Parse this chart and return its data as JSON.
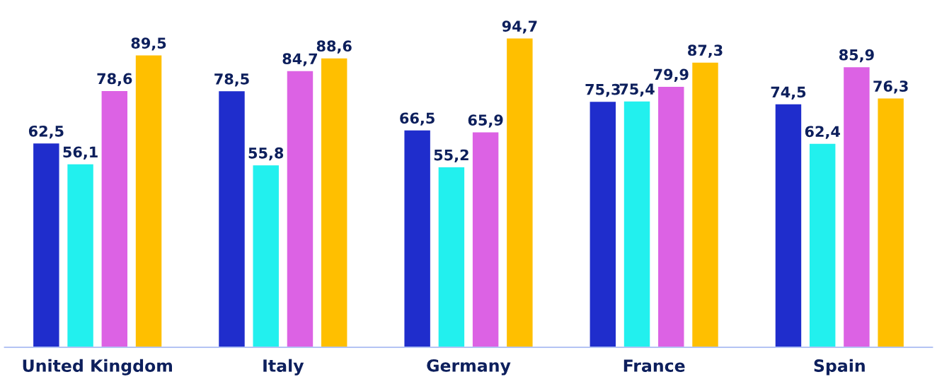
{
  "chart_data": {
    "type": "bar",
    "categories": [
      "United Kingdom",
      "Italy",
      "Germany",
      "France",
      "Spain"
    ],
    "series": [
      {
        "color": "#1f2dcc",
        "values": [
          62.5,
          78.5,
          66.5,
          75.3,
          74.5
        ],
        "value_labels": [
          "62,5",
          "78,5",
          "66,5",
          "75,3",
          "74,5"
        ]
      },
      {
        "color": "#22f0ee",
        "values": [
          56.1,
          55.8,
          55.2,
          75.4,
          62.4
        ],
        "value_labels": [
          "56,1",
          "55,8",
          "55,2",
          "75,4",
          "62,4"
        ]
      },
      {
        "color": "#dc62e4",
        "values": [
          78.6,
          84.7,
          65.9,
          79.9,
          85.9
        ],
        "value_labels": [
          "78,6",
          "84,7",
          "65,9",
          "79,9",
          "85,9"
        ]
      },
      {
        "color": "#ffbf00",
        "values": [
          89.5,
          88.6,
          94.7,
          87.3,
          76.3
        ],
        "value_labels": [
          "89,5",
          "88,6",
          "94,7",
          "87,3",
          "76,3"
        ]
      }
    ],
    "tick_labels": "x",
    "grid": false
  }
}
